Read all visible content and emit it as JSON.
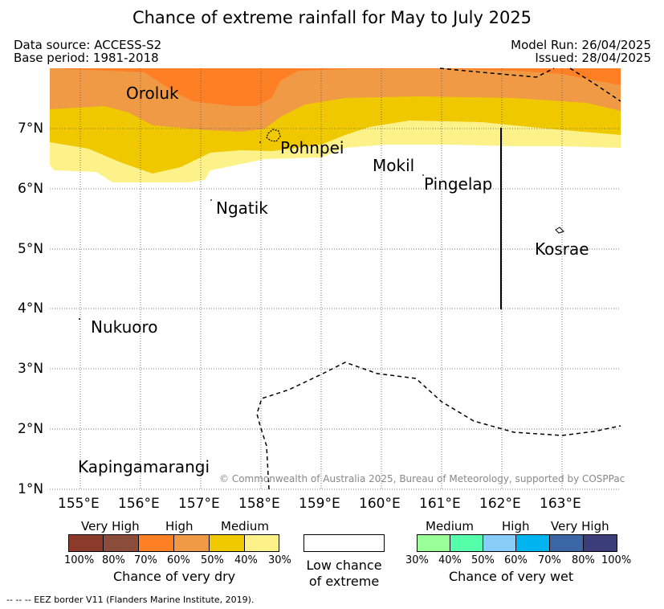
{
  "title": "Chance of extreme rainfall for May to July 2025",
  "header": {
    "data_source": "Data source: ACCESS-S2",
    "base_period": "Base period: 1981-2018",
    "model_run": "Model Run: 26/04/2025",
    "issued": "Issued: 28/04/2025"
  },
  "map": {
    "lon_ticks": [
      "155°E",
      "156°E",
      "157°E",
      "158°E",
      "159°E",
      "160°E",
      "161°E",
      "162°E",
      "163°E"
    ],
    "lat_ticks": [
      "7°N",
      "6°N",
      "5°N",
      "4°N",
      "3°N",
      "2°N",
      "1°N"
    ],
    "places": {
      "oroluk": "Oroluk",
      "pohnpei": "Pohnpei",
      "mokil": "Mokil",
      "pingelap": "Pingelap",
      "ngatik": "Ngatik",
      "kosrae": "Kosrae",
      "nukuoro": "Nukuoro",
      "kapingamarangi": "Kapingamarangi"
    },
    "copyright": "© Commonwealth of Australia 2025, Bureau of Meteorology, supported by COSPPac",
    "colors": {
      "high_dry": "#ff7f24",
      "medium_high_dry": "#f09a46",
      "medium_dry": "#efc800",
      "low_medium_dry": "#fdf28a"
    }
  },
  "legend": {
    "dry": {
      "labels": [
        "Very High",
        "High",
        "Medium"
      ],
      "colors": [
        "#8b3a2c",
        "#8b4c3a",
        "#ff7f24",
        "#f09a46",
        "#efc800",
        "#fdf28a"
      ],
      "percents": [
        "100%",
        "80%",
        "70%",
        "60%",
        "50%",
        "40%",
        "30%"
      ],
      "caption": "Chance of very dry"
    },
    "low": {
      "line1": "Low chance",
      "line2": "of extreme"
    },
    "wet": {
      "labels": [
        "Medium",
        "High",
        "Very High"
      ],
      "colors": [
        "#99ff99",
        "#55ffaa",
        "#88ccf8",
        "#00b4f0",
        "#3a66a6",
        "#3b3d7a"
      ],
      "percents": [
        "30%",
        "40%",
        "50%",
        "60%",
        "70%",
        "80%",
        "100%"
      ],
      "caption": "Chance of very wet"
    }
  },
  "footnote": "--  --  -- EEZ border V11 (Flanders Marine Institute, 2019)."
}
